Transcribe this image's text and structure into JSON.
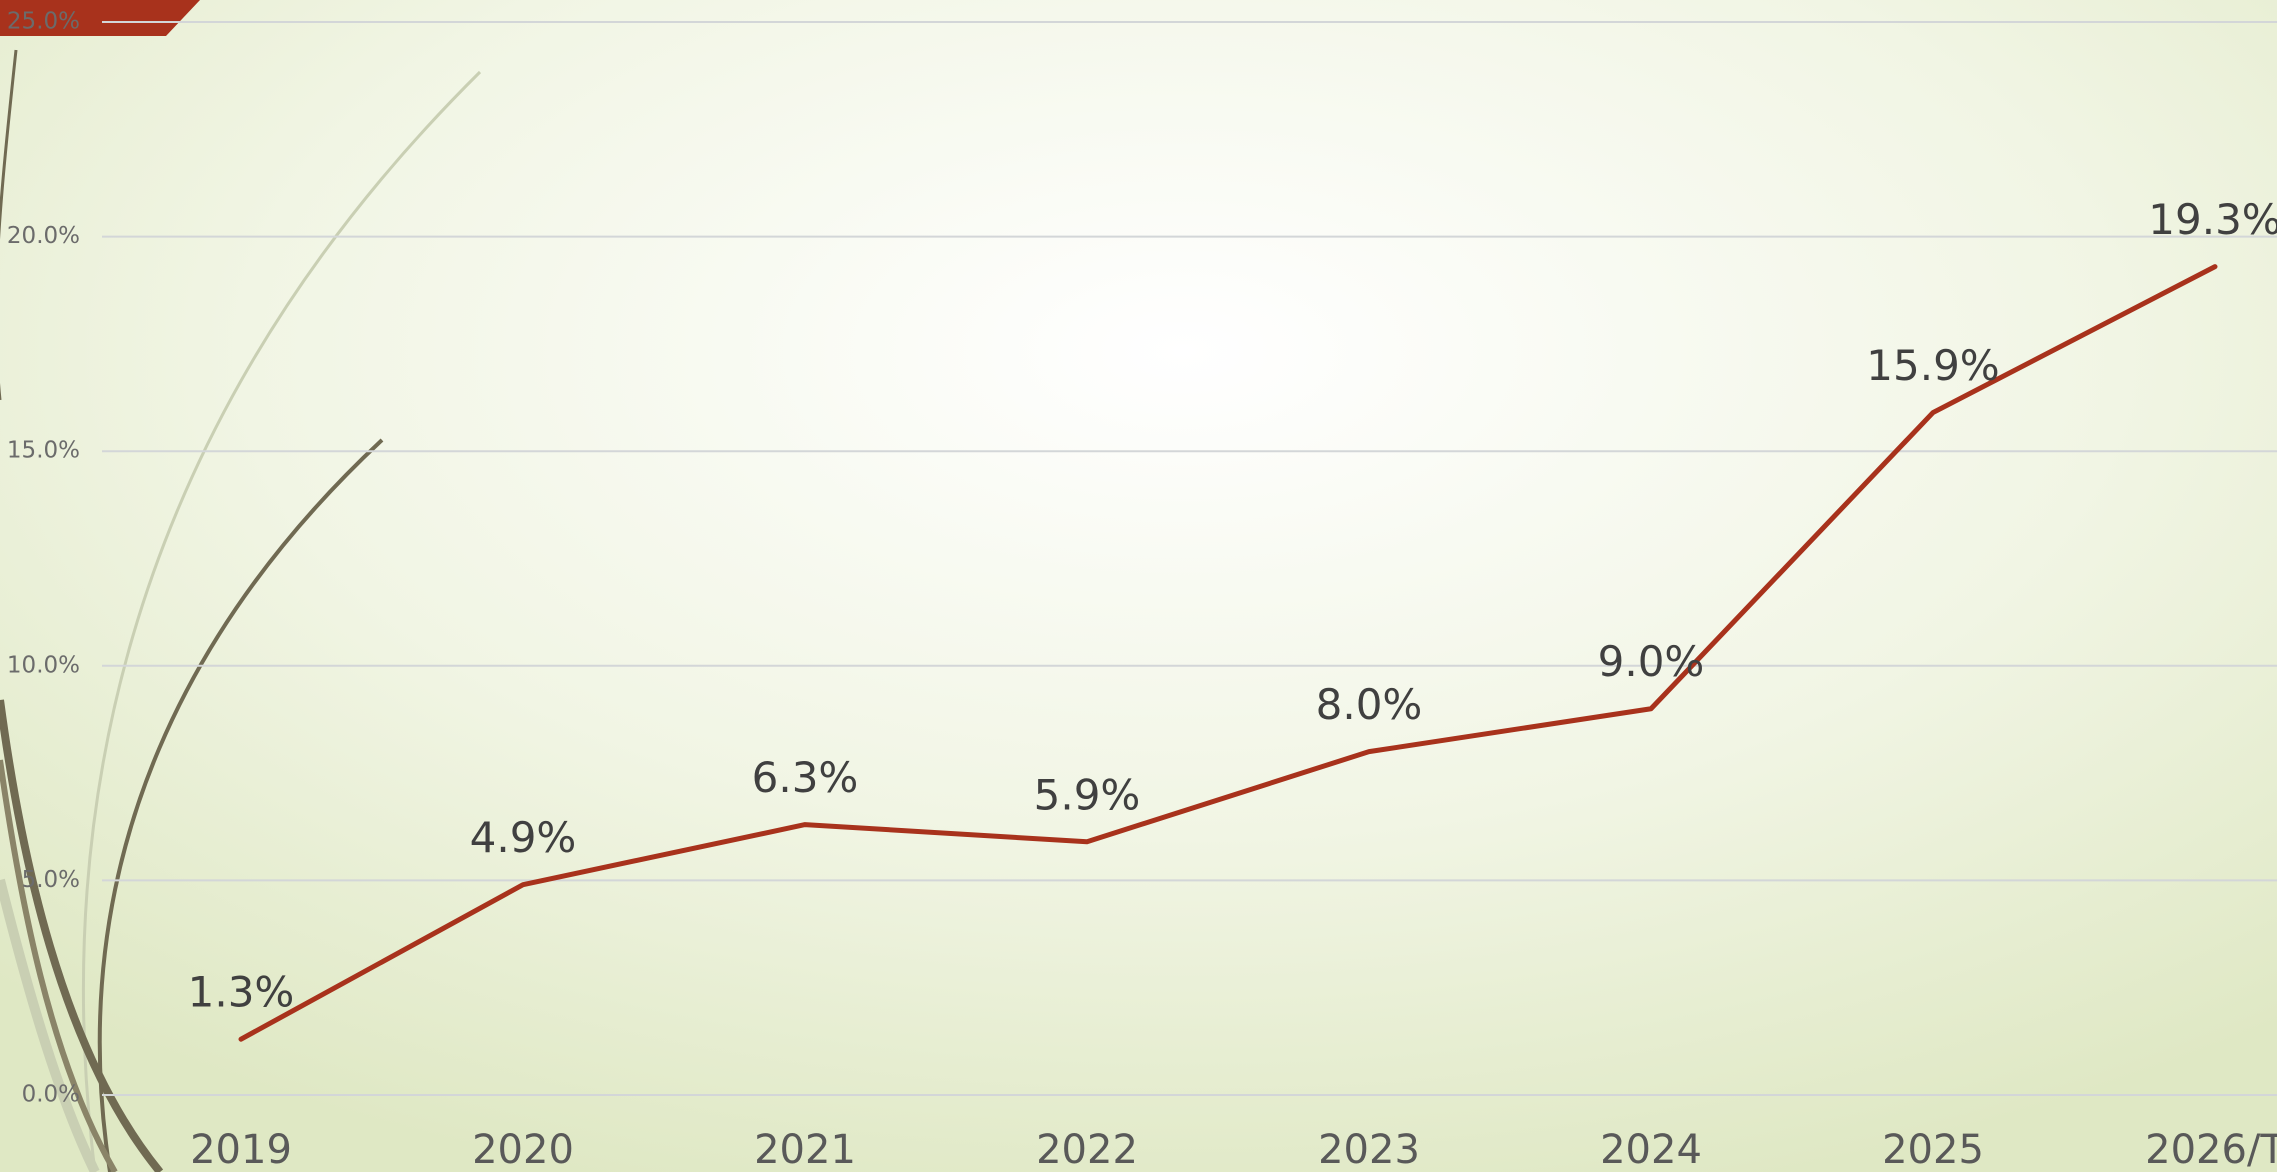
{
  "chart_data": {
    "type": "line",
    "categories": [
      "2019",
      "2020",
      "2021",
      "2022",
      "2023",
      "2024",
      "2025",
      "2026/T"
    ],
    "values": [
      1.3,
      4.9,
      6.3,
      5.9,
      8.0,
      9.0,
      15.9,
      19.3
    ],
    "value_labels": [
      "1.3%",
      "4.9%",
      "6.3%",
      "5.9%",
      "8.0%",
      "9.0%",
      "15.9%",
      "19.3%"
    ],
    "color": "#a8321c",
    "ylim": [
      0,
      25
    ],
    "yticks": [
      {
        "value": 0,
        "label": "0.0%"
      },
      {
        "value": 5,
        "label": "5.0%"
      },
      {
        "value": 10,
        "label": "10.0%"
      },
      {
        "value": 15,
        "label": "15.0%"
      },
      {
        "value": 20,
        "label": "20.0%"
      },
      {
        "value": 25,
        "label": "25.0%"
      }
    ],
    "grid": true
  }
}
